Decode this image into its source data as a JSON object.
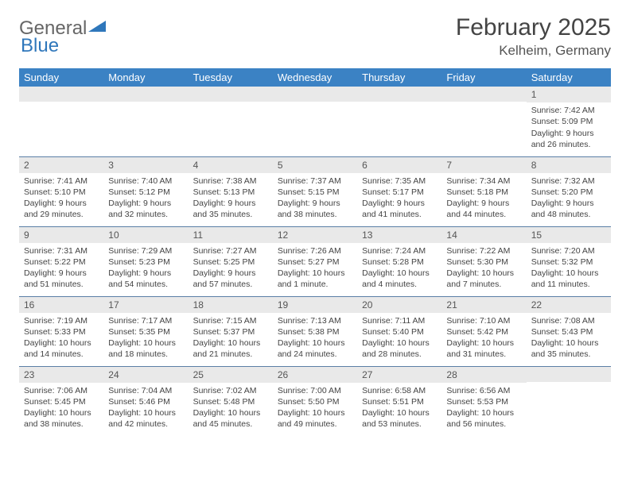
{
  "logo": {
    "word1": "General",
    "word2": "Blue"
  },
  "title": "February 2025",
  "location": "Kelheim, Germany",
  "colors": {
    "header_bg": "#3b82c4",
    "header_fg": "#ffffff",
    "daynum_bg": "#e9e9e9",
    "rule": "#5a7fa6",
    "text": "#444444",
    "logo_accent": "#2f77bb"
  },
  "fonts": {
    "title_size_pt": 30,
    "location_size_pt": 17,
    "header_size_pt": 13,
    "cell_size_pt": 10.5
  },
  "weekdays": [
    "Sunday",
    "Monday",
    "Tuesday",
    "Wednesday",
    "Thursday",
    "Friday",
    "Saturday"
  ],
  "weeks": [
    [
      null,
      null,
      null,
      null,
      null,
      null,
      {
        "n": "1",
        "sr": "Sunrise: 7:42 AM",
        "ss": "Sunset: 5:09 PM",
        "dl": "Daylight: 9 hours and 26 minutes."
      }
    ],
    [
      {
        "n": "2",
        "sr": "Sunrise: 7:41 AM",
        "ss": "Sunset: 5:10 PM",
        "dl": "Daylight: 9 hours and 29 minutes."
      },
      {
        "n": "3",
        "sr": "Sunrise: 7:40 AM",
        "ss": "Sunset: 5:12 PM",
        "dl": "Daylight: 9 hours and 32 minutes."
      },
      {
        "n": "4",
        "sr": "Sunrise: 7:38 AM",
        "ss": "Sunset: 5:13 PM",
        "dl": "Daylight: 9 hours and 35 minutes."
      },
      {
        "n": "5",
        "sr": "Sunrise: 7:37 AM",
        "ss": "Sunset: 5:15 PM",
        "dl": "Daylight: 9 hours and 38 minutes."
      },
      {
        "n": "6",
        "sr": "Sunrise: 7:35 AM",
        "ss": "Sunset: 5:17 PM",
        "dl": "Daylight: 9 hours and 41 minutes."
      },
      {
        "n": "7",
        "sr": "Sunrise: 7:34 AM",
        "ss": "Sunset: 5:18 PM",
        "dl": "Daylight: 9 hours and 44 minutes."
      },
      {
        "n": "8",
        "sr": "Sunrise: 7:32 AM",
        "ss": "Sunset: 5:20 PM",
        "dl": "Daylight: 9 hours and 48 minutes."
      }
    ],
    [
      {
        "n": "9",
        "sr": "Sunrise: 7:31 AM",
        "ss": "Sunset: 5:22 PM",
        "dl": "Daylight: 9 hours and 51 minutes."
      },
      {
        "n": "10",
        "sr": "Sunrise: 7:29 AM",
        "ss": "Sunset: 5:23 PM",
        "dl": "Daylight: 9 hours and 54 minutes."
      },
      {
        "n": "11",
        "sr": "Sunrise: 7:27 AM",
        "ss": "Sunset: 5:25 PM",
        "dl": "Daylight: 9 hours and 57 minutes."
      },
      {
        "n": "12",
        "sr": "Sunrise: 7:26 AM",
        "ss": "Sunset: 5:27 PM",
        "dl": "Daylight: 10 hours and 1 minute."
      },
      {
        "n": "13",
        "sr": "Sunrise: 7:24 AM",
        "ss": "Sunset: 5:28 PM",
        "dl": "Daylight: 10 hours and 4 minutes."
      },
      {
        "n": "14",
        "sr": "Sunrise: 7:22 AM",
        "ss": "Sunset: 5:30 PM",
        "dl": "Daylight: 10 hours and 7 minutes."
      },
      {
        "n": "15",
        "sr": "Sunrise: 7:20 AM",
        "ss": "Sunset: 5:32 PM",
        "dl": "Daylight: 10 hours and 11 minutes."
      }
    ],
    [
      {
        "n": "16",
        "sr": "Sunrise: 7:19 AM",
        "ss": "Sunset: 5:33 PM",
        "dl": "Daylight: 10 hours and 14 minutes."
      },
      {
        "n": "17",
        "sr": "Sunrise: 7:17 AM",
        "ss": "Sunset: 5:35 PM",
        "dl": "Daylight: 10 hours and 18 minutes."
      },
      {
        "n": "18",
        "sr": "Sunrise: 7:15 AM",
        "ss": "Sunset: 5:37 PM",
        "dl": "Daylight: 10 hours and 21 minutes."
      },
      {
        "n": "19",
        "sr": "Sunrise: 7:13 AM",
        "ss": "Sunset: 5:38 PM",
        "dl": "Daylight: 10 hours and 24 minutes."
      },
      {
        "n": "20",
        "sr": "Sunrise: 7:11 AM",
        "ss": "Sunset: 5:40 PM",
        "dl": "Daylight: 10 hours and 28 minutes."
      },
      {
        "n": "21",
        "sr": "Sunrise: 7:10 AM",
        "ss": "Sunset: 5:42 PM",
        "dl": "Daylight: 10 hours and 31 minutes."
      },
      {
        "n": "22",
        "sr": "Sunrise: 7:08 AM",
        "ss": "Sunset: 5:43 PM",
        "dl": "Daylight: 10 hours and 35 minutes."
      }
    ],
    [
      {
        "n": "23",
        "sr": "Sunrise: 7:06 AM",
        "ss": "Sunset: 5:45 PM",
        "dl": "Daylight: 10 hours and 38 minutes."
      },
      {
        "n": "24",
        "sr": "Sunrise: 7:04 AM",
        "ss": "Sunset: 5:46 PM",
        "dl": "Daylight: 10 hours and 42 minutes."
      },
      {
        "n": "25",
        "sr": "Sunrise: 7:02 AM",
        "ss": "Sunset: 5:48 PM",
        "dl": "Daylight: 10 hours and 45 minutes."
      },
      {
        "n": "26",
        "sr": "Sunrise: 7:00 AM",
        "ss": "Sunset: 5:50 PM",
        "dl": "Daylight: 10 hours and 49 minutes."
      },
      {
        "n": "27",
        "sr": "Sunrise: 6:58 AM",
        "ss": "Sunset: 5:51 PM",
        "dl": "Daylight: 10 hours and 53 minutes."
      },
      {
        "n": "28",
        "sr": "Sunrise: 6:56 AM",
        "ss": "Sunset: 5:53 PM",
        "dl": "Daylight: 10 hours and 56 minutes."
      },
      null
    ]
  ]
}
